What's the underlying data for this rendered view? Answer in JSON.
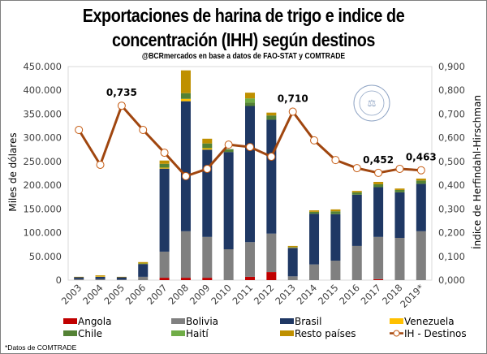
{
  "chart_data": {
    "type": "bar",
    "subtype": "stacked-bar-with-line",
    "title": "Exportaciones de harina de trigo e indice de concentración (IHH) según destinos",
    "title_lines": [
      "Exportaciones de harina de trigo e indice de",
      "concentración (IHH) según destinos"
    ],
    "subtitle": "@BCRmercados en base a datos de FAO-STAT y COMTRADE",
    "xlabel": "",
    "ylabel": "Miles de dólares",
    "y2label": "Índice de Herfindahl-Hirschman",
    "ylim": [
      0,
      450000
    ],
    "y2lim": [
      0,
      0.9
    ],
    "yticks": [
      "0",
      "50.000",
      "100.000",
      "150.000",
      "200.000",
      "250.000",
      "300.000",
      "350.000",
      "400.000",
      "450.000"
    ],
    "y2ticks": [
      "0,000",
      "0,100",
      "0,200",
      "0,300",
      "0,400",
      "0,500",
      "0,600",
      "0,700",
      "0,800",
      "0,900"
    ],
    "grid": false,
    "legend_position": "bottom",
    "categories": [
      "2003",
      "2004",
      "2005",
      "2006",
      "2007",
      "2008",
      "2009",
      "2010",
      "2011",
      "2012",
      "2013",
      "2014",
      "2015",
      "2016",
      "2017",
      "2018",
      "2019*"
    ],
    "series": [
      {
        "name": "Angola",
        "color": "#c00000",
        "values": [
          0,
          0,
          0,
          0,
          5000,
          5000,
          5000,
          0,
          7000,
          17000,
          0,
          0,
          0,
          0,
          2000,
          0,
          0
        ]
      },
      {
        "name": "Bolivia",
        "color": "#808080",
        "values": [
          2000,
          2000,
          1000,
          7000,
          55000,
          98000,
          86000,
          65000,
          73000,
          81000,
          8000,
          33000,
          41000,
          72000,
          89000,
          89000,
          103000
        ]
      },
      {
        "name": "Brasil",
        "color": "#1f3864",
        "values": [
          4000,
          5000,
          5000,
          27000,
          175000,
          274000,
          184000,
          205000,
          287000,
          240000,
          60000,
          107000,
          98000,
          108000,
          105000,
          96000,
          100000
        ]
      },
      {
        "name": "Venezuela",
        "color": "#ffc000",
        "values": [
          0,
          1000,
          0,
          1000,
          2000,
          5000,
          3000,
          0,
          0,
          0,
          1000,
          0,
          0,
          0,
          0,
          0,
          0
        ]
      },
      {
        "name": "Chile",
        "color": "#548235",
        "values": [
          0,
          0,
          0,
          1000,
          8000,
          12000,
          10000,
          6000,
          7000,
          9000,
          1000,
          4000,
          6000,
          5000,
          6000,
          5000,
          7000
        ]
      },
      {
        "name": "Haití",
        "color": "#70ad47",
        "values": [
          0,
          0,
          0,
          0,
          0,
          0,
          0,
          0,
          9000,
          0,
          0,
          0,
          0,
          0,
          0,
          0,
          0
        ]
      },
      {
        "name": "Resto países",
        "color": "#bf9000",
        "values": [
          1000,
          2000,
          1000,
          2000,
          7000,
          48000,
          10000,
          0,
          12000,
          6000,
          2000,
          3000,
          4000,
          3000,
          5000,
          3000,
          4000
        ]
      }
    ],
    "line_series": {
      "name": "IH - Destinos",
      "color": "#c55a11",
      "axis": "right",
      "values": [
        0.633,
        0.486,
        0.735,
        0.633,
        0.537,
        0.438,
        0.469,
        0.571,
        0.561,
        0.52,
        0.71,
        0.589,
        0.506,
        0.472,
        0.452,
        0.469,
        0.463
      ]
    },
    "annotations": [
      {
        "category": "2005",
        "text": "0,735"
      },
      {
        "category": "2013",
        "text": "0,710"
      },
      {
        "category": "2017",
        "text": "0,452"
      },
      {
        "category": "2019*",
        "text": "0,463"
      }
    ],
    "footnote": "*Datos de COMTRADE",
    "watermark": "BOLSA DE COMERCIO DE ROSARIO"
  }
}
